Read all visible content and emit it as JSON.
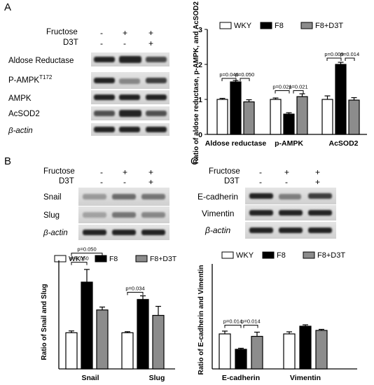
{
  "panels": {
    "A": "A",
    "B": "B",
    "C": "C"
  },
  "conditions": {
    "fructose_label": "Fructose",
    "d3t_label": "D3T",
    "fructose_signs": [
      "-",
      "+",
      "+"
    ],
    "d3t_signs": [
      "-",
      "-",
      "+"
    ]
  },
  "blots": {
    "A": [
      "Aldose Reductase",
      "P-AMPK",
      "AMPK",
      "AcSOD2",
      "β-actin"
    ],
    "A_sup": "T172",
    "B": [
      "Snail",
      "Slug",
      "β-actin"
    ],
    "C": [
      "E-cadherin",
      "Vimentin",
      "β-actin"
    ]
  },
  "legend": [
    "WKY",
    "F8",
    "F8+D3T"
  ],
  "colors": {
    "WKY": "#ffffff",
    "F8": "#000000",
    "F8+D3T": "#8c8c8c"
  },
  "chart_data": [
    {
      "type": "bar",
      "panel": "A",
      "categories": [
        "Aldose reductase",
        "p-AMPK",
        "AcSOD2"
      ],
      "series": [
        {
          "name": "WKY",
          "values": [
            1.0,
            1.0,
            1.0
          ],
          "errors": [
            0.03,
            0.04,
            0.1
          ]
        },
        {
          "name": "F8",
          "values": [
            1.5,
            0.58,
            2.0
          ],
          "errors": [
            0.04,
            0.04,
            0.06
          ]
        },
        {
          "name": "F8+D3T",
          "values": [
            0.93,
            1.08,
            0.98
          ],
          "errors": [
            0.06,
            0.08,
            0.07
          ]
        }
      ],
      "ylabel": "Ratio of aldose reductase, p-AMPK, and AcSOD2",
      "ylim": [
        0,
        3
      ],
      "yticks": [
        "0",
        "1",
        "2",
        "3"
      ],
      "pvalues": [
        "p=0.046",
        "p=0.050",
        "p=0.021",
        "p=0.021",
        "p=0.009",
        "p=0.014"
      ]
    },
    {
      "type": "bar",
      "panel": "B",
      "categories": [
        "Snail",
        "Slug"
      ],
      "series": [
        {
          "name": "WKY",
          "values": [
            1.0,
            1.0
          ],
          "errors": [
            0.05,
            0.03
          ]
        },
        {
          "name": "F8",
          "values": [
            2.4,
            1.92
          ],
          "errors": [
            0.35,
            0.1
          ]
        },
        {
          "name": "F8+D3T",
          "values": [
            1.63,
            1.48
          ],
          "errors": [
            0.08,
            0.25
          ]
        }
      ],
      "ylabel": "Ratio of Snail and Slug",
      "pvalues": [
        "p=0.050",
        "p=0.050",
        "p=0.034"
      ]
    },
    {
      "type": "bar",
      "panel": "C",
      "categories": [
        "E-cadherin",
        "Vimentin"
      ],
      "series": [
        {
          "name": "WKY",
          "values": [
            1.0,
            1.0
          ],
          "errors": [
            0.08,
            0.06
          ]
        },
        {
          "name": "F8",
          "values": [
            0.56,
            1.22
          ],
          "errors": [
            0.03,
            0.04
          ]
        },
        {
          "name": "F8+D3T",
          "values": [
            0.93,
            1.1
          ],
          "errors": [
            0.12,
            0.03
          ]
        }
      ],
      "ylabel": "Ratio of E-cadherin and Vimentin",
      "pvalues": [
        "p=0.014",
        "p=0.014"
      ]
    }
  ]
}
